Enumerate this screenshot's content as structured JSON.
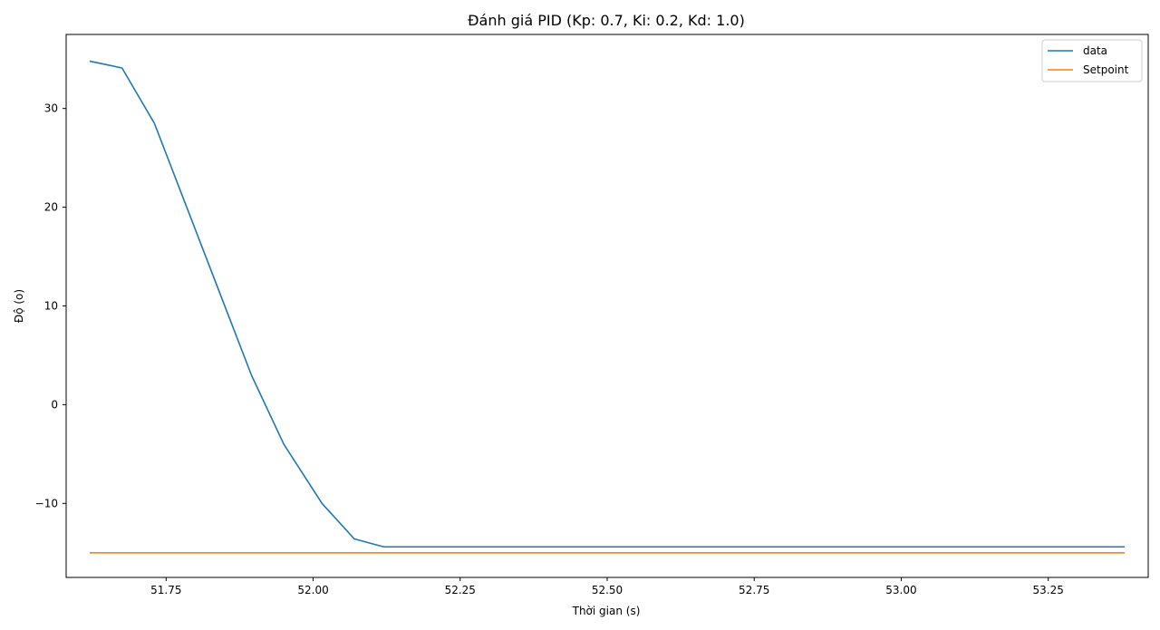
{
  "chart_data": {
    "type": "line",
    "title": "Đánh giá PID (Kp: 0.7, Ki: 0.2, Kd: 1.0)",
    "xlabel": "Thời gian (s)",
    "ylabel": "Độ (o)",
    "xlim": [
      51.58,
      53.42
    ],
    "ylim": [
      -17.5,
      37.5
    ],
    "xticks": [
      51.75,
      52.0,
      52.25,
      52.5,
      52.75,
      53.0,
      53.25
    ],
    "xtick_labels": [
      "51.75",
      "52.00",
      "52.25",
      "52.50",
      "52.75",
      "53.00",
      "53.25"
    ],
    "yticks": [
      -10,
      0,
      10,
      20,
      30
    ],
    "ytick_labels": [
      "−10",
      "0",
      "10",
      "20",
      "30"
    ],
    "grid": false,
    "legend_position": "top-right",
    "series": [
      {
        "name": "data",
        "color": "#1f77b4",
        "x": [
          51.62,
          51.675,
          51.73,
          51.785,
          51.84,
          51.895,
          51.95,
          52.015,
          52.07,
          52.12,
          52.18,
          52.25,
          52.5,
          52.75,
          53.0,
          53.25,
          53.38
        ],
        "y": [
          34.8,
          34.1,
          28.5,
          20.0,
          11.5,
          3.0,
          -4.0,
          -10.0,
          -13.6,
          -14.4,
          -14.4,
          -14.4,
          -14.4,
          -14.4,
          -14.4,
          -14.4,
          -14.4
        ]
      },
      {
        "name": "Setpoint",
        "color": "#ff7f0e",
        "x": [
          51.62,
          53.38
        ],
        "y": [
          -15.0,
          -15.0
        ]
      }
    ]
  }
}
